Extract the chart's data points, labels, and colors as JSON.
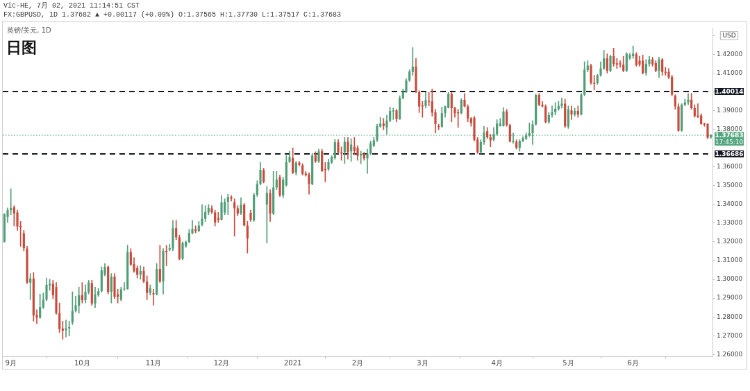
{
  "chart_data": {
    "type": "candlestick",
    "title": "日图",
    "subtitle": "英镑/美元, 1D",
    "annotations": [
      "Vic-HE, 7月 02, 2021 11:14:51 CST",
      "FX:GBPUSD, 1D 1.37682 ▲ +0.00117 (+0.09%) O:1.37565 H:1.37730 L:1.37517 C:1.37683",
      "17:45:10",
      "USD"
    ],
    "categories": [
      null,
      null,
      "9月",
      null,
      null,
      null,
      null,
      null,
      null,
      null,
      null,
      null,
      null,
      null,
      null,
      null,
      null,
      null,
      null,
      null,
      null,
      null,
      null,
      null,
      "10月",
      null,
      null,
      null,
      null,
      null,
      null,
      null,
      null,
      null,
      null,
      null,
      null,
      null,
      null,
      null,
      null,
      null,
      null,
      null,
      null,
      null,
      "11月",
      null,
      null,
      null,
      null,
      null,
      null,
      null,
      null,
      null,
      null,
      null,
      null,
      null,
      null,
      null,
      null,
      null,
      null,
      null,
      null,
      "12月",
      null,
      null,
      null,
      null,
      null,
      null,
      null,
      null,
      null,
      null,
      null,
      null,
      null,
      null,
      null,
      null,
      null,
      null,
      null,
      null,
      null,
      "2021",
      null,
      null,
      null,
      null,
      null,
      null,
      null,
      null,
      null,
      null,
      null,
      null,
      null,
      null,
      null,
      null,
      null,
      null,
      null,
      "2月",
      null,
      null,
      null,
      null,
      null,
      null,
      null,
      null,
      null,
      null,
      null,
      null,
      null,
      null,
      null,
      null,
      null,
      null,
      null,
      "3月",
      null,
      null,
      null,
      null,
      null,
      null,
      null,
      null,
      null,
      null,
      null,
      null,
      null,
      null,
      null,
      null,
      null,
      null,
      null,
      null,
      null,
      null,
      "4月",
      null,
      null,
      null,
      null,
      null,
      null,
      null,
      null,
      null,
      null,
      null,
      null,
      null,
      null,
      null,
      null,
      null,
      null,
      null,
      null,
      null,
      "5月",
      null,
      null,
      null,
      null,
      null,
      null,
      null,
      null,
      null,
      null,
      null,
      null,
      null,
      null,
      null,
      null,
      null,
      null,
      null,
      "6月",
      null,
      null,
      null,
      null,
      null,
      null,
      null,
      null,
      null,
      null,
      null,
      null,
      null,
      null,
      null,
      null,
      null,
      null,
      null,
      null,
      null,
      null,
      null,
      null
    ],
    "ohlc": [
      [
        1.32,
        1.3351,
        1.3198,
        1.3348
      ],
      [
        1.3333,
        1.3381,
        1.3303,
        1.3369
      ],
      [
        1.3369,
        1.3484,
        1.3345,
        1.3381
      ],
      [
        1.3384,
        1.3393,
        1.3285,
        1.3351
      ],
      [
        1.3357,
        1.3369,
        1.3261,
        1.3282
      ],
      [
        1.3285,
        1.3309,
        1.3176,
        1.3278
      ],
      [
        1.3246,
        1.3261,
        1.3152,
        1.3166
      ],
      [
        1.3164,
        1.3176,
        1.2977,
        1.2983
      ],
      [
        1.2983,
        1.3031,
        1.2892,
        1.3005
      ],
      [
        1.3005,
        1.3037,
        1.2777,
        1.2808
      ],
      [
        1.2811,
        1.2838,
        1.2765,
        1.2796
      ],
      [
        1.2796,
        1.2922,
        1.2792,
        1.2852
      ],
      [
        1.285,
        1.2928,
        1.2844,
        1.2892
      ],
      [
        1.2892,
        1.3007,
        1.2886,
        1.2971
      ],
      [
        1.2968,
        1.3001,
        1.2941,
        1.2976
      ],
      [
        1.2977,
        1.2995,
        1.2898,
        1.2916
      ],
      [
        1.2959,
        1.2983,
        1.2814,
        1.282
      ],
      [
        1.282,
        1.2874,
        1.2717,
        1.2735
      ],
      [
        1.2738,
        1.2777,
        1.2681,
        1.2727
      ],
      [
        1.2729,
        1.2784,
        1.2693,
        1.2739
      ],
      [
        1.2739,
        1.2777,
        1.2699,
        1.2746
      ],
      [
        1.2771,
        1.2934,
        1.2759,
        1.2832
      ],
      [
        1.2832,
        1.291,
        1.2826,
        1.2862
      ],
      [
        1.286,
        1.2959,
        1.282,
        1.2916
      ],
      [
        1.2916,
        1.2983,
        1.2874,
        1.2889
      ],
      [
        1.2889,
        1.2971,
        1.2874,
        1.2934
      ],
      [
        1.2932,
        1.2995,
        1.2922,
        1.2983
      ],
      [
        1.298,
        1.2995,
        1.2862,
        1.2872
      ],
      [
        1.2872,
        1.2959,
        1.285,
        1.292
      ],
      [
        1.2916,
        1.2953,
        1.291,
        1.2937
      ],
      [
        1.2937,
        1.3067,
        1.2932,
        1.3049
      ],
      [
        1.3025,
        1.3085,
        1.3019,
        1.3067
      ],
      [
        1.3067,
        1.3073,
        1.2922,
        1.2934
      ],
      [
        1.2934,
        1.3031,
        1.2874,
        1.3015
      ],
      [
        1.3015,
        1.3031,
        1.2898,
        1.2908
      ],
      [
        1.292,
        1.2947,
        1.2874,
        1.2908
      ],
      [
        1.2892,
        1.2959,
        1.2886,
        1.2947
      ],
      [
        1.2947,
        1.2983,
        1.2941,
        1.295
      ],
      [
        1.2949,
        1.3182,
        1.2947,
        1.3146
      ],
      [
        1.3146,
        1.3164,
        1.3073,
        1.3079
      ],
      [
        1.3082,
        1.3116,
        1.3037,
        1.3043
      ],
      [
        1.3061,
        1.3073,
        1.3007,
        1.3025
      ],
      [
        1.3025,
        1.3073,
        1.3001,
        1.3045
      ],
      [
        1.3045,
        1.3067,
        1.2983,
        1.2989
      ],
      [
        1.2989,
        1.3019,
        1.2892,
        1.2928
      ],
      [
        1.2928,
        1.2971,
        1.2916,
        1.2953
      ],
      [
        1.2926,
        1.2947,
        1.2862,
        1.292
      ],
      [
        1.292,
        1.3085,
        1.2916,
        1.3055
      ],
      [
        1.3055,
        1.3182,
        1.2983,
        1.2989
      ],
      [
        1.2989,
        1.3164,
        1.2922,
        1.3152
      ],
      [
        1.3152,
        1.3182,
        1.3073,
        1.3146
      ],
      [
        1.3158,
        1.3188,
        1.3152,
        1.3166
      ],
      [
        1.3164,
        1.3315,
        1.3152,
        1.3273
      ],
      [
        1.3273,
        1.3315,
        1.3212,
        1.3224
      ],
      [
        1.3224,
        1.3236,
        1.3104,
        1.311
      ],
      [
        1.311,
        1.32,
        1.3104,
        1.3194
      ],
      [
        1.3176,
        1.3206,
        1.317,
        1.32
      ],
      [
        1.32,
        1.3267,
        1.3194,
        1.3248
      ],
      [
        1.3246,
        1.3315,
        1.3242,
        1.3269
      ],
      [
        1.3267,
        1.3285,
        1.3248,
        1.3258
      ],
      [
        1.3258,
        1.3309,
        1.3254,
        1.3287
      ],
      [
        1.3291,
        1.3399,
        1.3285,
        1.3323
      ],
      [
        1.3323,
        1.3393,
        1.3309,
        1.336
      ],
      [
        1.3357,
        1.3399,
        1.3345,
        1.3381
      ],
      [
        1.3379,
        1.3393,
        1.3351,
        1.3357
      ],
      [
        1.3357,
        1.3369,
        1.3285,
        1.3303
      ],
      [
        1.3327,
        1.3357,
        1.3303,
        1.3318
      ],
      [
        1.3318,
        1.3448,
        1.3315,
        1.3411
      ],
      [
        1.3357,
        1.343,
        1.3345,
        1.3414
      ],
      [
        1.3414,
        1.3454,
        1.3345,
        1.3439
      ],
      [
        1.3439,
        1.3448,
        1.3417,
        1.343
      ],
      [
        1.3411,
        1.343,
        1.323,
        1.3379
      ],
      [
        1.3379,
        1.3393,
        1.3339,
        1.3351
      ],
      [
        1.3351,
        1.3436,
        1.3345,
        1.3398
      ],
      [
        1.3398,
        1.3405,
        1.3285,
        1.3287
      ],
      [
        1.3287,
        1.3309,
        1.314,
        1.3218
      ],
      [
        1.3355,
        1.3369,
        1.3309,
        1.3318
      ],
      [
        1.3315,
        1.346,
        1.3309,
        1.3451
      ],
      [
        1.3451,
        1.3526,
        1.3442,
        1.3508
      ],
      [
        1.3508,
        1.3623,
        1.3504,
        1.3584
      ],
      [
        1.3583,
        1.3593,
        1.3514,
        1.352
      ],
      [
        1.3399,
        1.3496,
        1.3194,
        1.346
      ],
      [
        1.346,
        1.3478,
        1.3309,
        1.3351
      ],
      [
        1.3351,
        1.3575,
        1.3345,
        1.349
      ],
      [
        1.349,
        1.3575,
        1.3478,
        1.3532
      ],
      [
        1.3544,
        1.3556,
        1.3442,
        1.3448
      ],
      [
        1.3448,
        1.3544,
        1.3436,
        1.3532
      ],
      [
        1.3502,
        1.3659,
        1.3496,
        1.3626
      ],
      [
        1.3626,
        1.3683,
        1.3623,
        1.3653
      ],
      [
        1.3647,
        1.3701,
        1.3563,
        1.3569
      ],
      [
        1.3569,
        1.3629,
        1.3556,
        1.3623
      ],
      [
        1.3623,
        1.3629,
        1.3605,
        1.3611
      ],
      [
        1.3608,
        1.3617,
        1.3556,
        1.3563
      ],
      [
        1.3565,
        1.3575,
        1.355,
        1.3556
      ],
      [
        1.356,
        1.3569,
        1.3454,
        1.3508
      ],
      [
        1.3508,
        1.3671,
        1.3504,
        1.3661
      ],
      [
        1.3661,
        1.3681,
        1.3623,
        1.3629
      ],
      [
        1.3629,
        1.3695,
        1.3623,
        1.3683
      ],
      [
        1.3683,
        1.3695,
        1.3575,
        1.3577
      ],
      [
        1.3589,
        1.3623,
        1.352,
        1.3583
      ],
      [
        1.3587,
        1.3641,
        1.358,
        1.3625
      ],
      [
        1.3623,
        1.3659,
        1.3617,
        1.3653
      ],
      [
        1.3647,
        1.3746,
        1.3641,
        1.3731
      ],
      [
        1.3731,
        1.3746,
        1.3671,
        1.3677
      ],
      [
        1.3677,
        1.3707,
        1.3635,
        1.3671
      ],
      [
        1.3677,
        1.3756,
        1.3617,
        1.3734
      ],
      [
        1.3734,
        1.3756,
        1.3641,
        1.3677
      ],
      [
        1.3683,
        1.375,
        1.3629,
        1.3719
      ],
      [
        1.3707,
        1.3756,
        1.3665,
        1.3685
      ],
      [
        1.3701,
        1.3713,
        1.3635,
        1.3659
      ],
      [
        1.3661,
        1.3683,
        1.3617,
        1.3669
      ],
      [
        1.3669,
        1.3677,
        1.3635,
        1.3645
      ],
      [
        1.3645,
        1.3695,
        1.3565,
        1.3671
      ],
      [
        1.3671,
        1.3738,
        1.3665,
        1.3725
      ],
      [
        1.3713,
        1.3756,
        1.3707,
        1.3741
      ],
      [
        1.3741,
        1.3828,
        1.3734,
        1.3818
      ],
      [
        1.3815,
        1.3864,
        1.381,
        1.383
      ],
      [
        1.3831,
        1.3858,
        1.3798,
        1.3818
      ],
      [
        1.381,
        1.3876,
        1.3774,
        1.3846
      ],
      [
        1.3846,
        1.3919,
        1.384,
        1.3898
      ],
      [
        1.3895,
        1.3913,
        1.3852,
        1.3901
      ],
      [
        1.3901,
        1.3907,
        1.384,
        1.3855
      ],
      [
        1.3855,
        1.3979,
        1.3852,
        1.3967
      ],
      [
        1.3967,
        1.4015,
        1.3961,
        1.3999
      ],
      [
        1.3999,
        1.407,
        1.3995,
        1.406
      ],
      [
        1.406,
        1.4118,
        1.4055,
        1.4108
      ],
      [
        1.4106,
        1.4236,
        1.4088,
        1.4134
      ],
      [
        1.4134,
        1.4178,
        1.3995,
        1.3999
      ],
      [
        1.3999,
        1.4007,
        1.3889,
        1.3922
      ],
      [
        1.3927,
        1.3949,
        1.3864,
        1.3922
      ],
      [
        1.3925,
        1.3997,
        1.3913,
        1.3955
      ],
      [
        1.3951,
        1.3997,
        1.3925,
        1.3947
      ],
      [
        1.3949,
        1.4015,
        1.387,
        1.3889
      ],
      [
        1.3891,
        1.3907,
        1.378,
        1.3828
      ],
      [
        1.3818,
        1.3828,
        1.3798,
        1.3812
      ],
      [
        1.3814,
        1.3919,
        1.381,
        1.3886
      ],
      [
        1.3886,
        1.3925,
        1.3864,
        1.3922
      ],
      [
        1.3915,
        1.3997,
        1.3913,
        1.3989
      ],
      [
        1.3989,
        1.3997,
        1.384,
        1.3913
      ],
      [
        1.3913,
        1.3919,
        1.3864,
        1.3886
      ],
      [
        1.3891,
        1.3907,
        1.381,
        1.3886
      ],
      [
        1.3886,
        1.3963,
        1.3882,
        1.3957
      ],
      [
        1.3957,
        1.3991,
        1.3919,
        1.3922
      ],
      [
        1.3922,
        1.3931,
        1.384,
        1.3858
      ],
      [
        1.3858,
        1.3864,
        1.3816,
        1.3834
      ],
      [
        1.3862,
        1.387,
        1.3738,
        1.3744
      ],
      [
        1.3746,
        1.3756,
        1.3671,
        1.3677
      ],
      [
        1.3677,
        1.3744,
        1.3671,
        1.3732
      ],
      [
        1.3732,
        1.3816,
        1.3719,
        1.3782
      ],
      [
        1.379,
        1.381,
        1.375,
        1.3758
      ],
      [
        1.3758,
        1.3774,
        1.3707,
        1.3741
      ],
      [
        1.3744,
        1.381,
        1.3738,
        1.3774
      ],
      [
        1.3774,
        1.3852,
        1.3768,
        1.3831
      ],
      [
        1.3818,
        1.3858,
        1.3816,
        1.3831
      ],
      [
        1.3818,
        1.3915,
        1.3816,
        1.3895
      ],
      [
        1.3895,
        1.3907,
        1.3816,
        1.3822
      ],
      [
        1.3822,
        1.3828,
        1.3732,
        1.3735
      ],
      [
        1.3732,
        1.378,
        1.3726,
        1.3738
      ],
      [
        1.3734,
        1.3744,
        1.3695,
        1.3701
      ],
      [
        1.3701,
        1.3744,
        1.3683,
        1.3738
      ],
      [
        1.3738,
        1.3762,
        1.3732,
        1.3753
      ],
      [
        1.375,
        1.378,
        1.3744,
        1.3768
      ],
      [
        1.3768,
        1.3834,
        1.3762,
        1.378
      ],
      [
        1.378,
        1.3846,
        1.3719,
        1.3826
      ],
      [
        1.3826,
        1.3988,
        1.3822,
        1.3983
      ],
      [
        1.3983,
        1.3991,
        1.3925,
        1.3931
      ],
      [
        1.3931,
        1.3949,
        1.3919,
        1.3922
      ],
      [
        1.3922,
        1.3931,
        1.3834,
        1.3838
      ],
      [
        1.3838,
        1.3889,
        1.3831,
        1.3876
      ],
      [
        1.3876,
        1.3925,
        1.3864,
        1.3891
      ],
      [
        1.3891,
        1.3943,
        1.3876,
        1.391
      ],
      [
        1.3907,
        1.3949,
        1.3901,
        1.3925
      ],
      [
        1.3925,
        1.3967,
        1.3913,
        1.3937
      ],
      [
        1.3937,
        1.3961,
        1.381,
        1.3816
      ],
      [
        1.3814,
        1.3925,
        1.3804,
        1.3907
      ],
      [
        1.3901,
        1.3925,
        1.3852,
        1.3879
      ],
      [
        1.3879,
        1.3913,
        1.387,
        1.3898
      ],
      [
        1.3898,
        1.3925,
        1.3864,
        1.3879
      ],
      [
        1.3879,
        1.3991,
        1.3876,
        1.3985
      ],
      [
        1.3985,
        1.416,
        1.3979,
        1.4118
      ],
      [
        1.4116,
        1.4166,
        1.4106,
        1.414
      ],
      [
        1.414,
        1.4148,
        1.404,
        1.4048
      ],
      [
        1.4048,
        1.4088,
        1.4009,
        1.4043
      ],
      [
        1.4046,
        1.4094,
        1.404,
        1.4088
      ],
      [
        1.4088,
        1.416,
        1.4082,
        1.4124
      ],
      [
        1.4124,
        1.4221,
        1.4118,
        1.4178
      ],
      [
        1.4178,
        1.4203,
        1.41,
        1.4112
      ],
      [
        1.4112,
        1.4196,
        1.4106,
        1.419
      ],
      [
        1.419,
        1.4233,
        1.4136,
        1.4148
      ],
      [
        1.4152,
        1.4178,
        1.4124,
        1.4145
      ],
      [
        1.4152,
        1.4166,
        1.413,
        1.4145
      ],
      [
        1.4145,
        1.419,
        1.4106,
        1.4112
      ],
      [
        1.4112,
        1.4209,
        1.4106,
        1.4203
      ],
      [
        1.4178,
        1.4205,
        1.4172,
        1.4196
      ],
      [
        1.419,
        1.4245,
        1.4178,
        1.4203
      ],
      [
        1.42,
        1.4209,
        1.4136,
        1.4142
      ],
      [
        1.4166,
        1.419,
        1.4136,
        1.4145
      ],
      [
        1.4166,
        1.4196,
        1.4094,
        1.41
      ],
      [
        1.41,
        1.4172,
        1.4088,
        1.4148
      ],
      [
        1.4148,
        1.419,
        1.4136,
        1.4172
      ],
      [
        1.4172,
        1.4184,
        1.4136,
        1.4145
      ],
      [
        1.4154,
        1.4166,
        1.4106,
        1.4112
      ],
      [
        1.4112,
        1.4184,
        1.4076,
        1.4172
      ],
      [
        1.4172,
        1.4178,
        1.4088,
        1.4106
      ],
      [
        1.4106,
        1.413,
        1.4088,
        1.41
      ],
      [
        1.4106,
        1.4124,
        1.407,
        1.4076
      ],
      [
        1.4079,
        1.4088,
        1.3979,
        1.3985
      ],
      [
        1.3979,
        1.3985,
        1.3907,
        1.3922
      ],
      [
        1.3922,
        1.3937,
        1.3789,
        1.3792
      ],
      [
        1.3792,
        1.3937,
        1.3789,
        1.3931
      ],
      [
        1.3931,
        1.3961,
        1.3925,
        1.3943
      ],
      [
        1.3943,
        1.3991,
        1.3931,
        1.3958
      ],
      [
        1.3958,
        1.3991,
        1.3907,
        1.3913
      ],
      [
        1.3913,
        1.3931,
        1.3864,
        1.387
      ],
      [
        1.3874,
        1.3937,
        1.3862,
        1.3867
      ],
      [
        1.3874,
        1.3883,
        1.3826,
        1.3828
      ],
      [
        1.3831,
        1.3834,
        1.3816,
        1.3826
      ],
      [
        1.3828,
        1.3831,
        1.375,
        1.3756
      ],
      [
        1.37565,
        1.3773,
        1.37517,
        1.37683
      ]
    ],
    "colors": [
      "#4f9d76",
      "#4f9d76",
      "#4f9d76",
      "#c94a3b",
      "#c94a3b",
      "#c94a3b",
      "#c94a3b",
      "#c94a3b",
      "#4f9d76",
      "#c94a3b",
      "#c94a3b",
      "#4f9d76",
      "#4f9d76",
      "#4f9d76",
      "#4f9d76",
      "#c94a3b",
      "#c94a3b",
      "#c94a3b",
      "#c94a3b",
      "#4f9d76",
      "#4f9d76",
      "#4f9d76",
      "#4f9d76",
      "#4f9d76",
      "#c94a3b",
      "#4f9d76",
      "#4f9d76",
      "#c94a3b",
      "#4f9d76",
      "#4f9d76",
      "#4f9d76",
      "#4f9d76",
      "#c94a3b",
      "#4f9d76",
      "#c94a3b",
      "#c94a3b",
      "#4f9d76",
      "#4f9d76",
      "#4f9d76",
      "#c94a3b",
      "#c94a3b",
      "#c94a3b",
      "#4f9d76",
      "#c94a3b",
      "#c94a3b",
      "#4f9d76",
      "#c94a3b",
      "#4f9d76",
      "#c94a3b",
      "#4f9d76",
      "#c94a3b",
      "#4f9d76",
      "#4f9d76",
      "#c94a3b",
      "#c94a3b",
      "#4f9d76",
      "#4f9d76",
      "#4f9d76",
      "#4f9d76",
      "#c94a3b",
      "#4f9d76",
      "#4f9d76",
      "#4f9d76",
      "#4f9d76",
      "#c94a3b",
      "#c94a3b",
      "#c94a3b",
      "#4f9d76",
      "#4f9d76",
      "#4f9d76",
      "#c94a3b",
      "#c94a3b",
      "#c94a3b",
      "#4f9d76",
      "#c94a3b",
      "#c94a3b",
      "#c94a3b",
      "#4f9d76",
      "#4f9d76",
      "#4f9d76",
      "#c94a3b",
      "#4f9d76",
      "#c94a3b",
      "#4f9d76",
      "#4f9d76",
      "#c94a3b",
      "#4f9d76",
      "#4f9d76",
      "#4f9d76",
      "#c94a3b",
      "#4f9d76",
      "#c94a3b",
      "#c94a3b",
      "#c94a3b",
      "#c94a3b",
      "#4f9d76",
      "#c94a3b",
      "#4f9d76",
      "#c94a3b",
      "#c94a3b",
      "#4f9d76",
      "#4f9d76",
      "#4f9d76",
      "#c94a3b",
      "#c94a3b",
      "#4f9d76",
      "#c94a3b",
      "#4f9d76",
      "#c94a3b",
      "#c94a3b",
      "#4f9d76",
      "#c94a3b",
      "#4f9d76",
      "#4f9d76",
      "#4f9d76",
      "#4f9d76",
      "#4f9d76",
      "#c94a3b",
      "#4f9d76",
      "#4f9d76",
      "#4f9d76",
      "#c94a3b",
      "#4f9d76",
      "#4f9d76",
      "#4f9d76",
      "#4f9d76",
      "#4f9d76",
      "#c94a3b",
      "#c94a3b",
      "#c94a3b",
      "#4f9d76",
      "#c94a3b",
      "#c94a3b",
      "#c94a3b",
      "#c94a3b",
      "#4f9d76",
      "#4f9d76",
      "#4f9d76",
      "#c94a3b",
      "#c94a3b",
      "#c94a3b",
      "#4f9d76",
      "#c94a3b",
      "#c94a3b",
      "#c94a3b",
      "#c94a3b",
      "#c94a3b",
      "#4f9d76",
      "#4f9d76",
      "#c94a3b",
      "#c94a3b",
      "#4f9d76",
      "#4f9d76",
      "#4f9d76",
      "#4f9d76",
      "#c94a3b",
      "#c94a3b",
      "#4f9d76",
      "#c94a3b",
      "#4f9d76",
      "#4f9d76",
      "#4f9d76",
      "#4f9d76",
      "#4f9d76",
      "#4f9d76",
      "#c94a3b",
      "#c94a3b",
      "#c94a3b",
      "#4f9d76",
      "#4f9d76",
      "#4f9d76",
      "#4f9d76",
      "#4f9d76",
      "#c94a3b",
      "#4f9d76",
      "#c94a3b",
      "#4f9d76",
      "#c94a3b",
      "#4f9d76",
      "#4f9d76",
      "#4f9d76",
      "#c94a3b",
      "#c94a3b",
      "#4f9d76",
      "#4f9d76",
      "#4f9d76",
      "#c94a3b",
      "#4f9d76",
      "#c94a3b",
      "#c94a3b",
      "#c94a3b",
      "#c94a3b",
      "#4f9d76",
      "#4f9d76",
      "#4f9d76",
      "#c94a3b",
      "#c94a3b",
      "#c94a3b",
      "#4f9d76",
      "#4f9d76",
      "#c94a3b",
      "#c94a3b",
      "#4f9d76",
      "#c94a3b",
      "#c94a3b",
      "#c94a3b",
      "#c94a3b",
      "#c94a3b",
      "#c94a3b",
      "#4f9d76",
      "#4f9d76",
      "#4f9d76",
      "#c94a3b",
      "#c94a3b",
      "#c94a3b",
      "#c94a3b",
      "#c94a3b",
      "#c94a3b",
      "#4f9d76"
    ],
    "ylim": [
      1.259,
      1.434
    ],
    "yticks": [
      {
        "value": 1.26,
        "label": "1.26000"
      },
      {
        "value": 1.27,
        "label": "1.27000"
      },
      {
        "value": 1.28,
        "label": "1.28000"
      },
      {
        "value": 1.29,
        "label": "1.29000"
      },
      {
        "value": 1.3,
        "label": "1.30000"
      },
      {
        "value": 1.31,
        "label": "1.31000"
      },
      {
        "value": 1.32,
        "label": "1.32000"
      },
      {
        "value": 1.33,
        "label": "1.33000"
      },
      {
        "value": 1.34,
        "label": "1.34000"
      },
      {
        "value": 1.35,
        "label": "1.35000"
      },
      {
        "value": 1.36,
        "label": "1.36000"
      },
      {
        "value": 1.37,
        "label": null
      },
      {
        "value": 1.38,
        "label": "1.38000"
      },
      {
        "value": 1.39,
        "label": "1.39000"
      },
      {
        "value": 1.4,
        "label": null
      },
      {
        "value": 1.41,
        "label": "1.41000"
      },
      {
        "value": 1.42,
        "label": "1.42000"
      },
      {
        "value": 1.43,
        "label": null
      }
    ],
    "ref_lines": [
      {
        "axis": "y",
        "value": 1.40014,
        "label": "1.40014",
        "color": "#131722",
        "line_style": "dashed"
      },
      {
        "axis": "y",
        "value": 1.36686,
        "label": "1.36686",
        "color": "#131722",
        "line_style": "dashed"
      },
      {
        "axis": "y",
        "value": 1.37683,
        "label": "1.37683",
        "color": "#53a57f",
        "line_style": "dotted"
      }
    ]
  }
}
